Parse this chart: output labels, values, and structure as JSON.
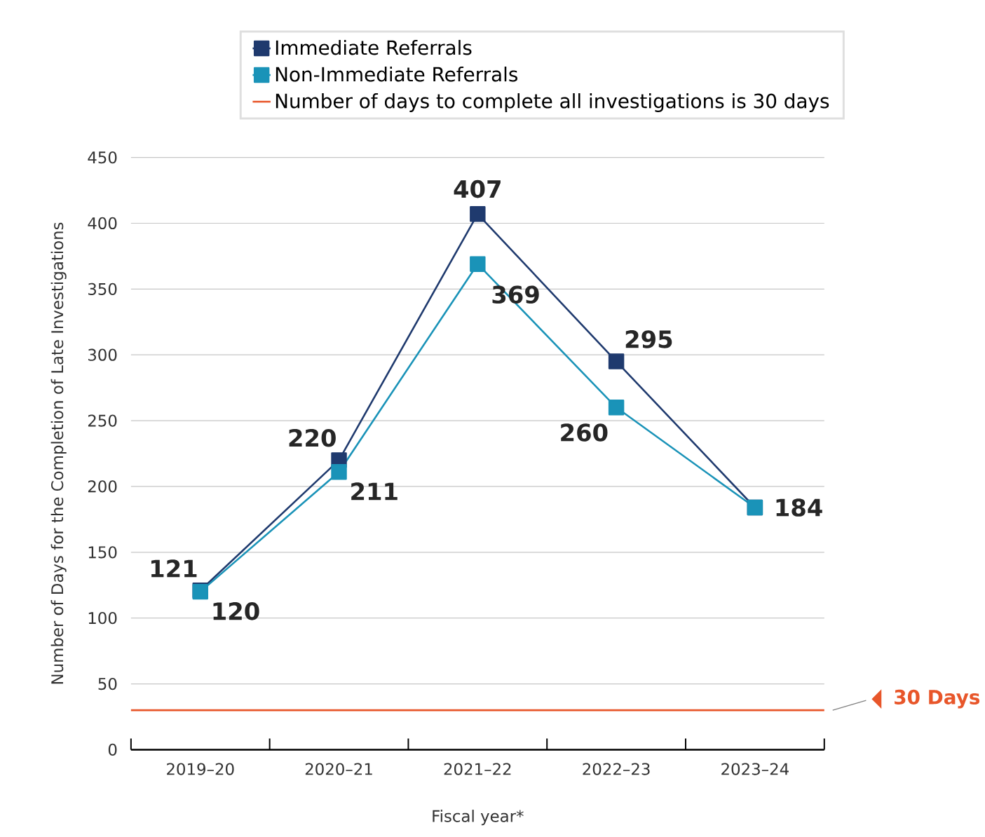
{
  "chart_data": {
    "type": "line",
    "xlabel": "Fiscal year*",
    "ylabel": "Number of Days for the Completion of Late Investigations",
    "categories": [
      "2019–20",
      "2020–21",
      "2021–22",
      "2022–23",
      "2023–24"
    ],
    "series": [
      {
        "name": "Immediate Referrals",
        "color": "#1f3a6e",
        "values": [
          121,
          220,
          407,
          295,
          184
        ],
        "value_labels": [
          "121",
          "220",
          "407",
          "295",
          "184"
        ]
      },
      {
        "name": "Non-Immediate Referrals",
        "color": "#1a93b8",
        "values": [
          120,
          211,
          369,
          260,
          184
        ],
        "value_labels": [
          "120",
          "211",
          "369",
          "260",
          null
        ]
      }
    ],
    "ref_lines": [
      {
        "axis": "y",
        "value": 30,
        "label": "Number of days to complete all investigations is 30 days",
        "color": "#e8562a"
      }
    ],
    "annotations": [
      "30 Days"
    ],
    "ylim": [
      0,
      450
    ],
    "yticks": [
      0,
      50,
      100,
      150,
      200,
      250,
      300,
      350,
      400,
      450
    ],
    "grid": "y",
    "legend": "top",
    "marker": "square",
    "line_style": "solid"
  }
}
